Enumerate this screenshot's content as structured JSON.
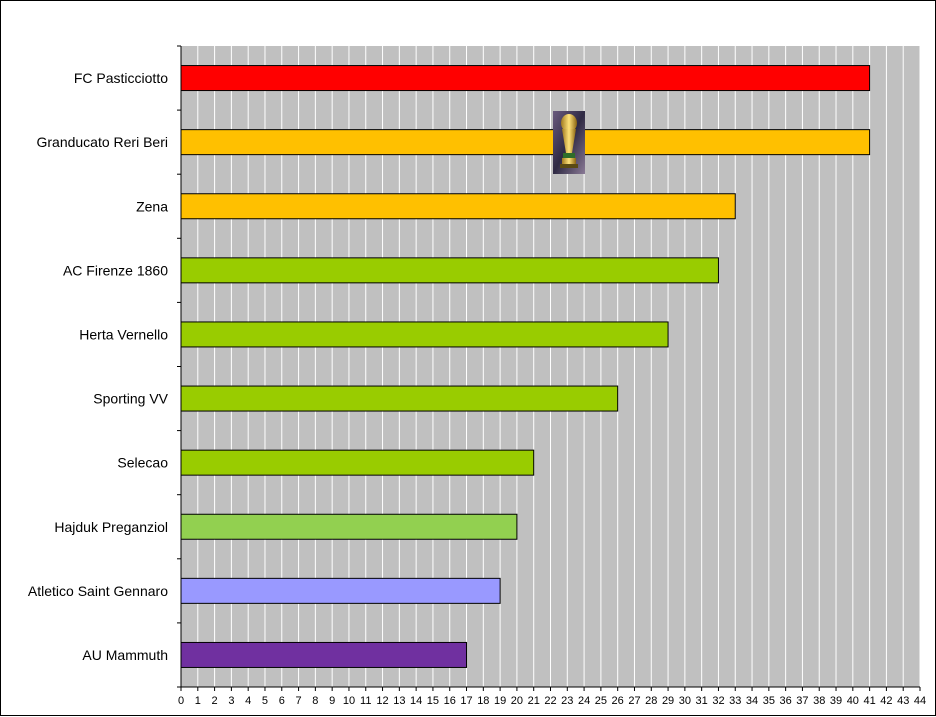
{
  "chart_data": {
    "type": "bar",
    "orientation": "horizontal",
    "title": "",
    "xlabel": "",
    "ylabel": "",
    "xlim": [
      0,
      44
    ],
    "grid": true,
    "legend": "none",
    "categories": [
      "FC Pasticciotto",
      "Granducato Reri Beri",
      "Zena",
      "AC Firenze 1860",
      "Herta Vernello",
      "Sporting VV",
      "Selecao",
      "Hajduk Preganziol",
      "Atletico Saint Gennaro",
      "AU Mammuth"
    ],
    "values": [
      41,
      41,
      33,
      32,
      29,
      26,
      21,
      20,
      19,
      17
    ],
    "colors": [
      "#ff0000",
      "#ffc000",
      "#ffc000",
      "#99cc00",
      "#99cc00",
      "#99cc00",
      "#99cc00",
      "#92d050",
      "#9999ff",
      "#7030a0"
    ],
    "ticks": [
      "0",
      "1",
      "2",
      "3",
      "4",
      "5",
      "6",
      "7",
      "8",
      "9",
      "10",
      "11",
      "12",
      "13",
      "14",
      "15",
      "16",
      "17",
      "18",
      "19",
      "20",
      "21",
      "22",
      "23",
      "24",
      "25",
      "26",
      "27",
      "28",
      "29",
      "30",
      "31",
      "32",
      "33",
      "34",
      "35",
      "36",
      "37",
      "38",
      "39",
      "40",
      "41",
      "42",
      "43",
      "44"
    ],
    "plot_background": "#c0c0c0",
    "annotation_icon": "trophy-icon"
  }
}
